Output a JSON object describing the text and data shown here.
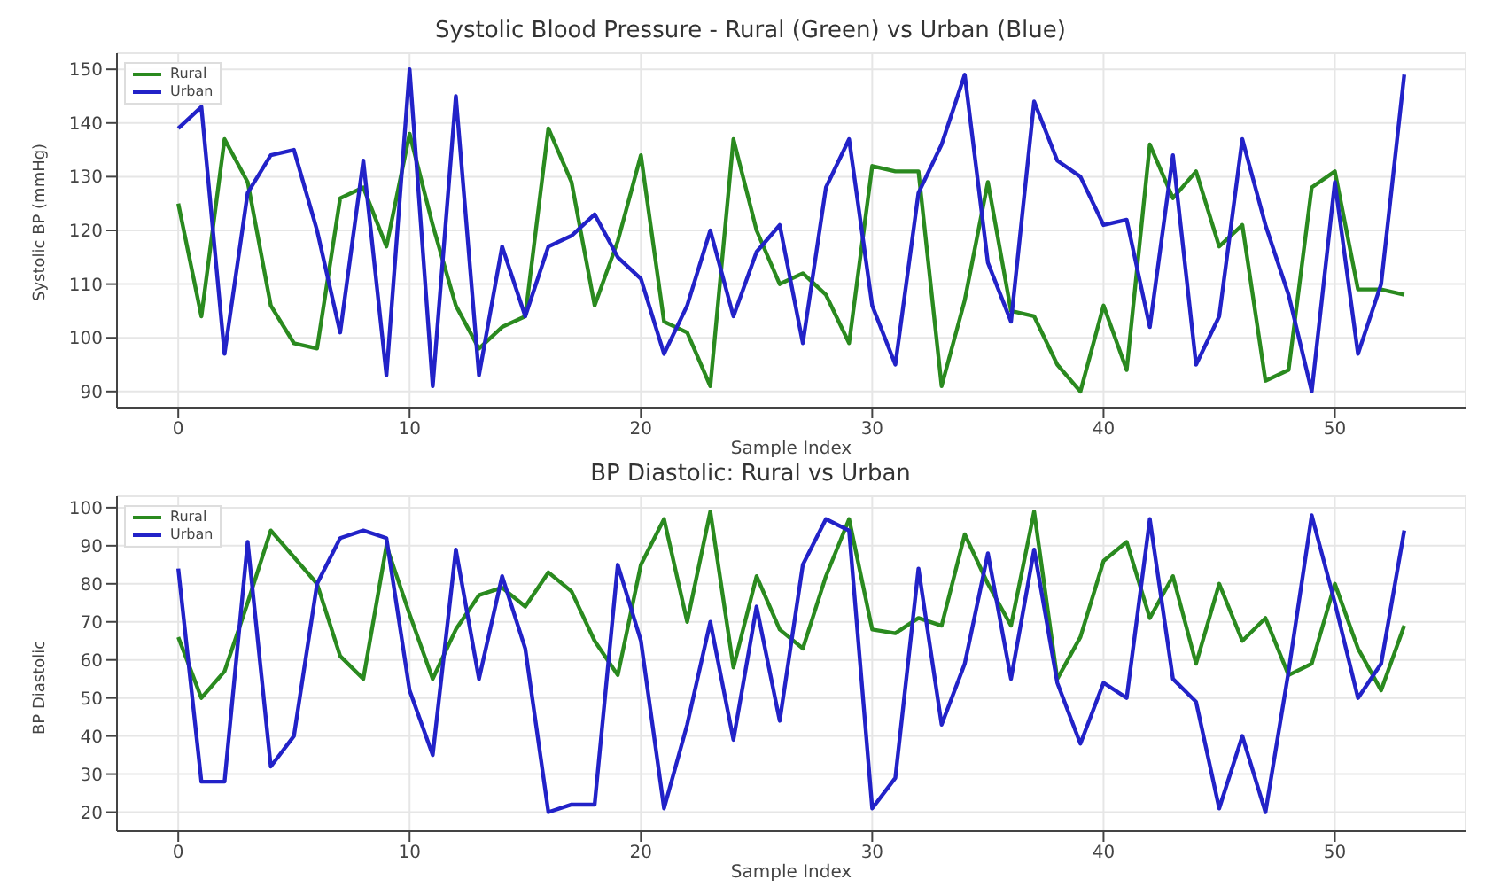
{
  "chart_data": [
    {
      "type": "line",
      "title": "Systolic Blood Pressure - Rural (Green) vs Urban (Blue)",
      "xlabel": "Sample Index",
      "ylabel": "Systolic BP (mmHg)",
      "x": [
        0,
        1,
        2,
        3,
        4,
        5,
        6,
        7,
        8,
        9,
        10,
        11,
        12,
        13,
        14,
        15,
        16,
        17,
        18,
        19,
        20,
        21,
        22,
        23,
        24,
        25,
        26,
        27,
        28,
        29,
        30,
        31,
        32,
        33,
        34,
        35,
        36,
        37,
        38,
        39,
        40,
        41,
        42,
        43,
        44,
        45,
        46,
        47,
        48,
        49,
        50,
        51,
        52,
        53
      ],
      "series": [
        {
          "name": "Rural",
          "color": "#2a8a1f",
          "values": [
            125,
            104,
            137,
            129,
            106,
            99,
            98,
            126,
            128,
            117,
            138,
            121,
            106,
            98,
            102,
            104,
            139,
            129,
            106,
            118,
            134,
            103,
            101,
            91,
            137,
            120,
            110,
            112,
            108,
            99,
            132,
            131,
            131,
            91,
            107,
            129,
            105,
            104,
            95,
            90,
            106,
            94,
            136,
            126,
            131,
            117,
            121,
            92,
            94,
            128,
            131,
            109,
            109,
            108
          ]
        },
        {
          "name": "Urban",
          "color": "#2222c8",
          "values": [
            139,
            143,
            97,
            127,
            134,
            135,
            120,
            101,
            133,
            93,
            150,
            91,
            145,
            93,
            117,
            104,
            117,
            119,
            123,
            115,
            111,
            97,
            106,
            120,
            104,
            116,
            121,
            99,
            128,
            137,
            106,
            95,
            127,
            136,
            149,
            114,
            103,
            144,
            133,
            130,
            121,
            122,
            102,
            134,
            95,
            104,
            137,
            121,
            108,
            90,
            129,
            97,
            110,
            149
          ]
        }
      ],
      "xlim": [
        -2.65,
        55.65
      ],
      "xticks": [
        0,
        10,
        20,
        30,
        40,
        50
      ],
      "ylim": [
        87,
        153
      ],
      "yticks": [
        90,
        100,
        110,
        120,
        130,
        140,
        150
      ],
      "grid": true,
      "legend": "top left",
      "marker": "none",
      "line_style": "solid"
    },
    {
      "type": "line",
      "title": "BP Diastolic: Rural vs Urban",
      "xlabel": "Sample Index",
      "ylabel": "BP Diastolic",
      "x": [
        0,
        1,
        2,
        3,
        4,
        5,
        6,
        7,
        8,
        9,
        10,
        11,
        12,
        13,
        14,
        15,
        16,
        17,
        18,
        19,
        20,
        21,
        22,
        23,
        24,
        25,
        26,
        27,
        28,
        29,
        30,
        31,
        32,
        33,
        34,
        35,
        36,
        37,
        38,
        39,
        40,
        41,
        42,
        43,
        44,
        45,
        46,
        47,
        48,
        49,
        50,
        51,
        52,
        53
      ],
      "series": [
        {
          "name": "Rural",
          "color": "#2a8a1f",
          "values": [
            66,
            50,
            57,
            75,
            94,
            87,
            80,
            61,
            55,
            90,
            72,
            55,
            68,
            77,
            79,
            74,
            83,
            78,
            65,
            56,
            85,
            97,
            70,
            99,
            58,
            82,
            68,
            63,
            82,
            97,
            68,
            67,
            71,
            69,
            93,
            80,
            69,
            99,
            55,
            66,
            86,
            91,
            71,
            82,
            59,
            80,
            65,
            71,
            56,
            59,
            80,
            63,
            52,
            69
          ]
        },
        {
          "name": "Urban",
          "color": "#2222c8",
          "values": [
            84,
            28,
            28,
            91,
            32,
            40,
            80,
            92,
            94,
            92,
            52,
            35,
            89,
            55,
            82,
            63,
            20,
            22,
            22,
            85,
            65,
            21,
            43,
            70,
            39,
            74,
            44,
            85,
            97,
            94,
            21,
            29,
            84,
            43,
            59,
            88,
            55,
            89,
            54,
            38,
            54,
            50,
            97,
            55,
            49,
            21,
            40,
            20,
            57,
            98,
            75,
            50,
            59,
            94
          ]
        }
      ],
      "xlim": [
        -2.65,
        55.65
      ],
      "xticks": [
        0,
        10,
        20,
        30,
        40,
        50
      ],
      "ylim": [
        15,
        103
      ],
      "yticks": [
        20,
        30,
        40,
        50,
        60,
        70,
        80,
        90,
        100
      ],
      "grid": true,
      "legend": "top left",
      "marker": "none",
      "line_style": "solid"
    }
  ]
}
